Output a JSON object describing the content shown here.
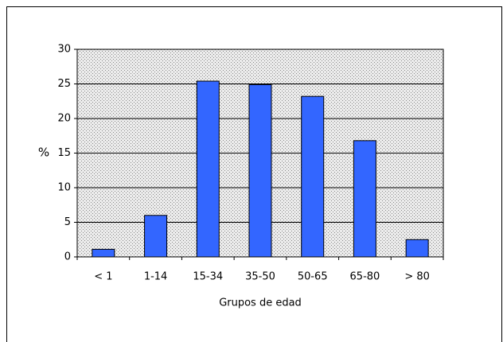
{
  "chart_data": {
    "type": "bar",
    "categories": [
      "< 1",
      "1-14",
      "15-34",
      "35-50",
      "50-65",
      "65-80",
      "> 80"
    ],
    "values": [
      1.1,
      6,
      25.4,
      24.9,
      23.2,
      16.8,
      2.5
    ],
    "color": "#3366ff",
    "ylabel": "%",
    "xlabel": "Grupos de edad",
    "ylim": [
      0,
      30
    ],
    "yticks": [
      0,
      5,
      10,
      15,
      20,
      25,
      30
    ],
    "grid": true
  }
}
